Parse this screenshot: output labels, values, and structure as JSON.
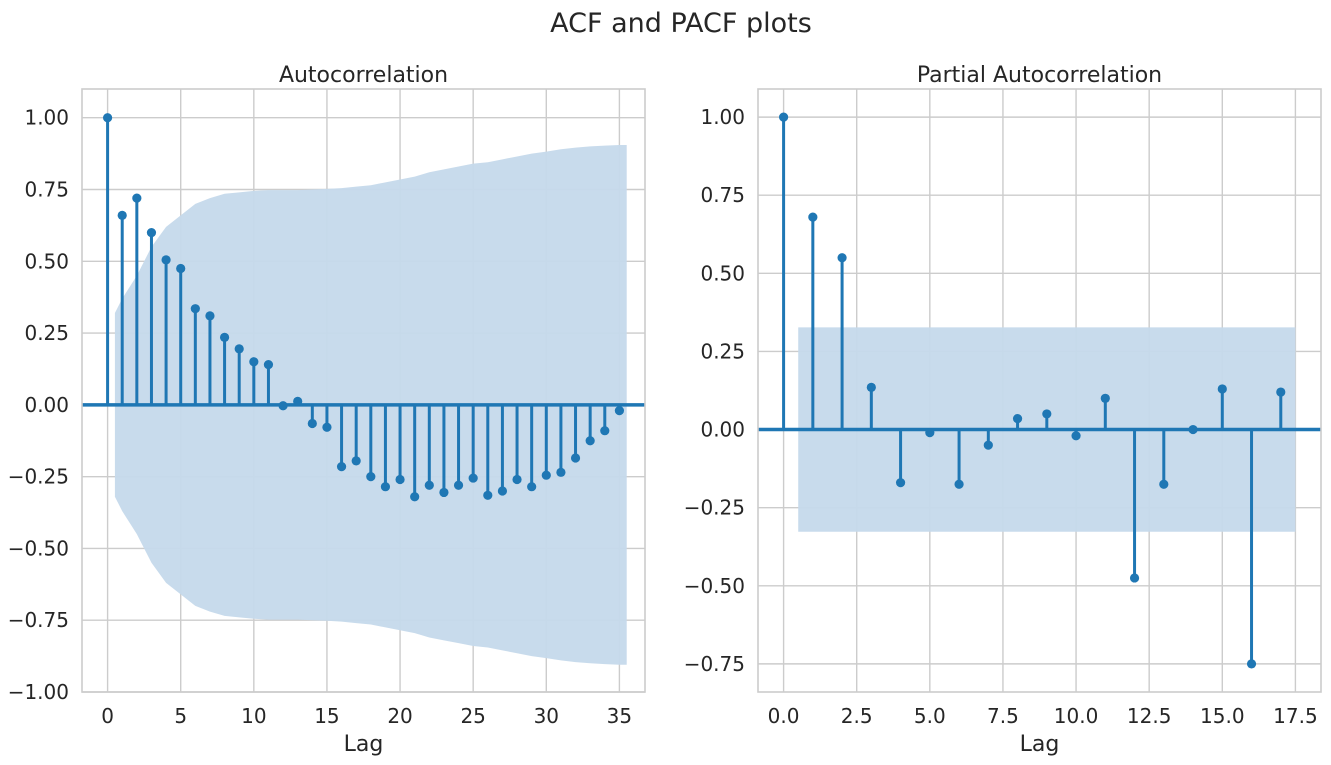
{
  "figure": {
    "title": "ACF and PACF plots",
    "colors": {
      "series": "#1f77b4",
      "band": "#c5d9eb",
      "grid": "#cccccc",
      "spine": "#cccccc",
      "text": "#262626"
    }
  },
  "chart_data": [
    {
      "type": "stem",
      "title": "Autocorrelation",
      "xlabel": "Lag",
      "ylabel": "",
      "xlim": [
        -1.75,
        36.75
      ],
      "ylim": [
        -1.0,
        1.1
      ],
      "grid": true,
      "xticks": [
        0,
        5,
        10,
        15,
        20,
        25,
        30,
        35
      ],
      "xtick_labels": [
        "0",
        "5",
        "10",
        "15",
        "20",
        "25",
        "30",
        "35"
      ],
      "yticks": [
        1.0,
        0.75,
        0.5,
        0.25,
        0.0,
        -0.25,
        -0.5,
        -0.75,
        -1.0
      ],
      "ytick_labels": [
        "1.00",
        "0.75",
        "0.50",
        "0.25",
        "0.00",
        "−0.25",
        "−0.50",
        "−0.75",
        "−1.00"
      ],
      "x": [
        0,
        1,
        2,
        3,
        4,
        5,
        6,
        7,
        8,
        9,
        10,
        11,
        12,
        13,
        14,
        15,
        16,
        17,
        18,
        19,
        20,
        21,
        22,
        23,
        24,
        25,
        26,
        27,
        28,
        29,
        30,
        31,
        32,
        33,
        34,
        35
      ],
      "values": [
        1.0,
        0.66,
        0.72,
        0.6,
        0.505,
        0.475,
        0.335,
        0.31,
        0.235,
        0.195,
        0.15,
        0.14,
        -0.003,
        0.012,
        -0.065,
        -0.078,
        -0.215,
        -0.195,
        -0.25,
        -0.285,
        -0.26,
        -0.32,
        -0.28,
        -0.305,
        -0.28,
        -0.255,
        -0.315,
        -0.3,
        -0.26,
        -0.285,
        -0.245,
        -0.235,
        -0.185,
        -0.125,
        -0.09,
        -0.02
      ],
      "confidence_band": {
        "x": [
          0.5,
          1,
          2,
          3,
          4,
          5,
          6,
          7,
          8,
          9,
          10,
          11,
          12,
          13,
          14,
          15,
          16,
          17,
          18,
          19,
          20,
          21,
          22,
          23,
          24,
          25,
          26,
          27,
          28,
          29,
          30,
          31,
          32,
          33,
          34,
          35,
          35.5
        ],
        "upper": [
          0.32,
          0.37,
          0.45,
          0.55,
          0.62,
          0.66,
          0.7,
          0.72,
          0.735,
          0.74,
          0.745,
          0.748,
          0.748,
          0.748,
          0.75,
          0.752,
          0.755,
          0.76,
          0.765,
          0.775,
          0.785,
          0.795,
          0.81,
          0.82,
          0.83,
          0.84,
          0.845,
          0.855,
          0.865,
          0.875,
          0.882,
          0.89,
          0.896,
          0.9,
          0.903,
          0.905,
          0.905
        ]
      }
    },
    {
      "type": "stem",
      "title": "Partial Autocorrelation",
      "xlabel": "Lag",
      "ylabel": "",
      "xlim": [
        -0.875,
        18.375
      ],
      "ylim": [
        -0.84,
        1.09
      ],
      "grid": true,
      "xticks": [
        0,
        2.5,
        5,
        7.5,
        10,
        12.5,
        15,
        17.5
      ],
      "xtick_labels": [
        "0.0",
        "2.5",
        "5.0",
        "7.5",
        "10.0",
        "12.5",
        "15.0",
        "17.5"
      ],
      "yticks": [
        1.0,
        0.75,
        0.5,
        0.25,
        0.0,
        -0.25,
        -0.5,
        -0.75
      ],
      "ytick_labels": [
        "1.00",
        "0.75",
        "0.50",
        "0.25",
        "0.00",
        "−0.25",
        "−0.50",
        "−0.75"
      ],
      "x": [
        0,
        1,
        2,
        3,
        4,
        5,
        6,
        7,
        8,
        9,
        10,
        11,
        12,
        13,
        14,
        15,
        16,
        17
      ],
      "values": [
        1.0,
        0.68,
        0.55,
        0.135,
        -0.17,
        -0.01,
        -0.175,
        -0.05,
        0.035,
        0.05,
        -0.02,
        0.1,
        -0.475,
        -0.175,
        0.0,
        0.13,
        -0.75,
        0.12
      ],
      "confidence_band": {
        "x": [
          0.5,
          17.5
        ],
        "upper": [
          0.327,
          0.327
        ]
      }
    }
  ]
}
